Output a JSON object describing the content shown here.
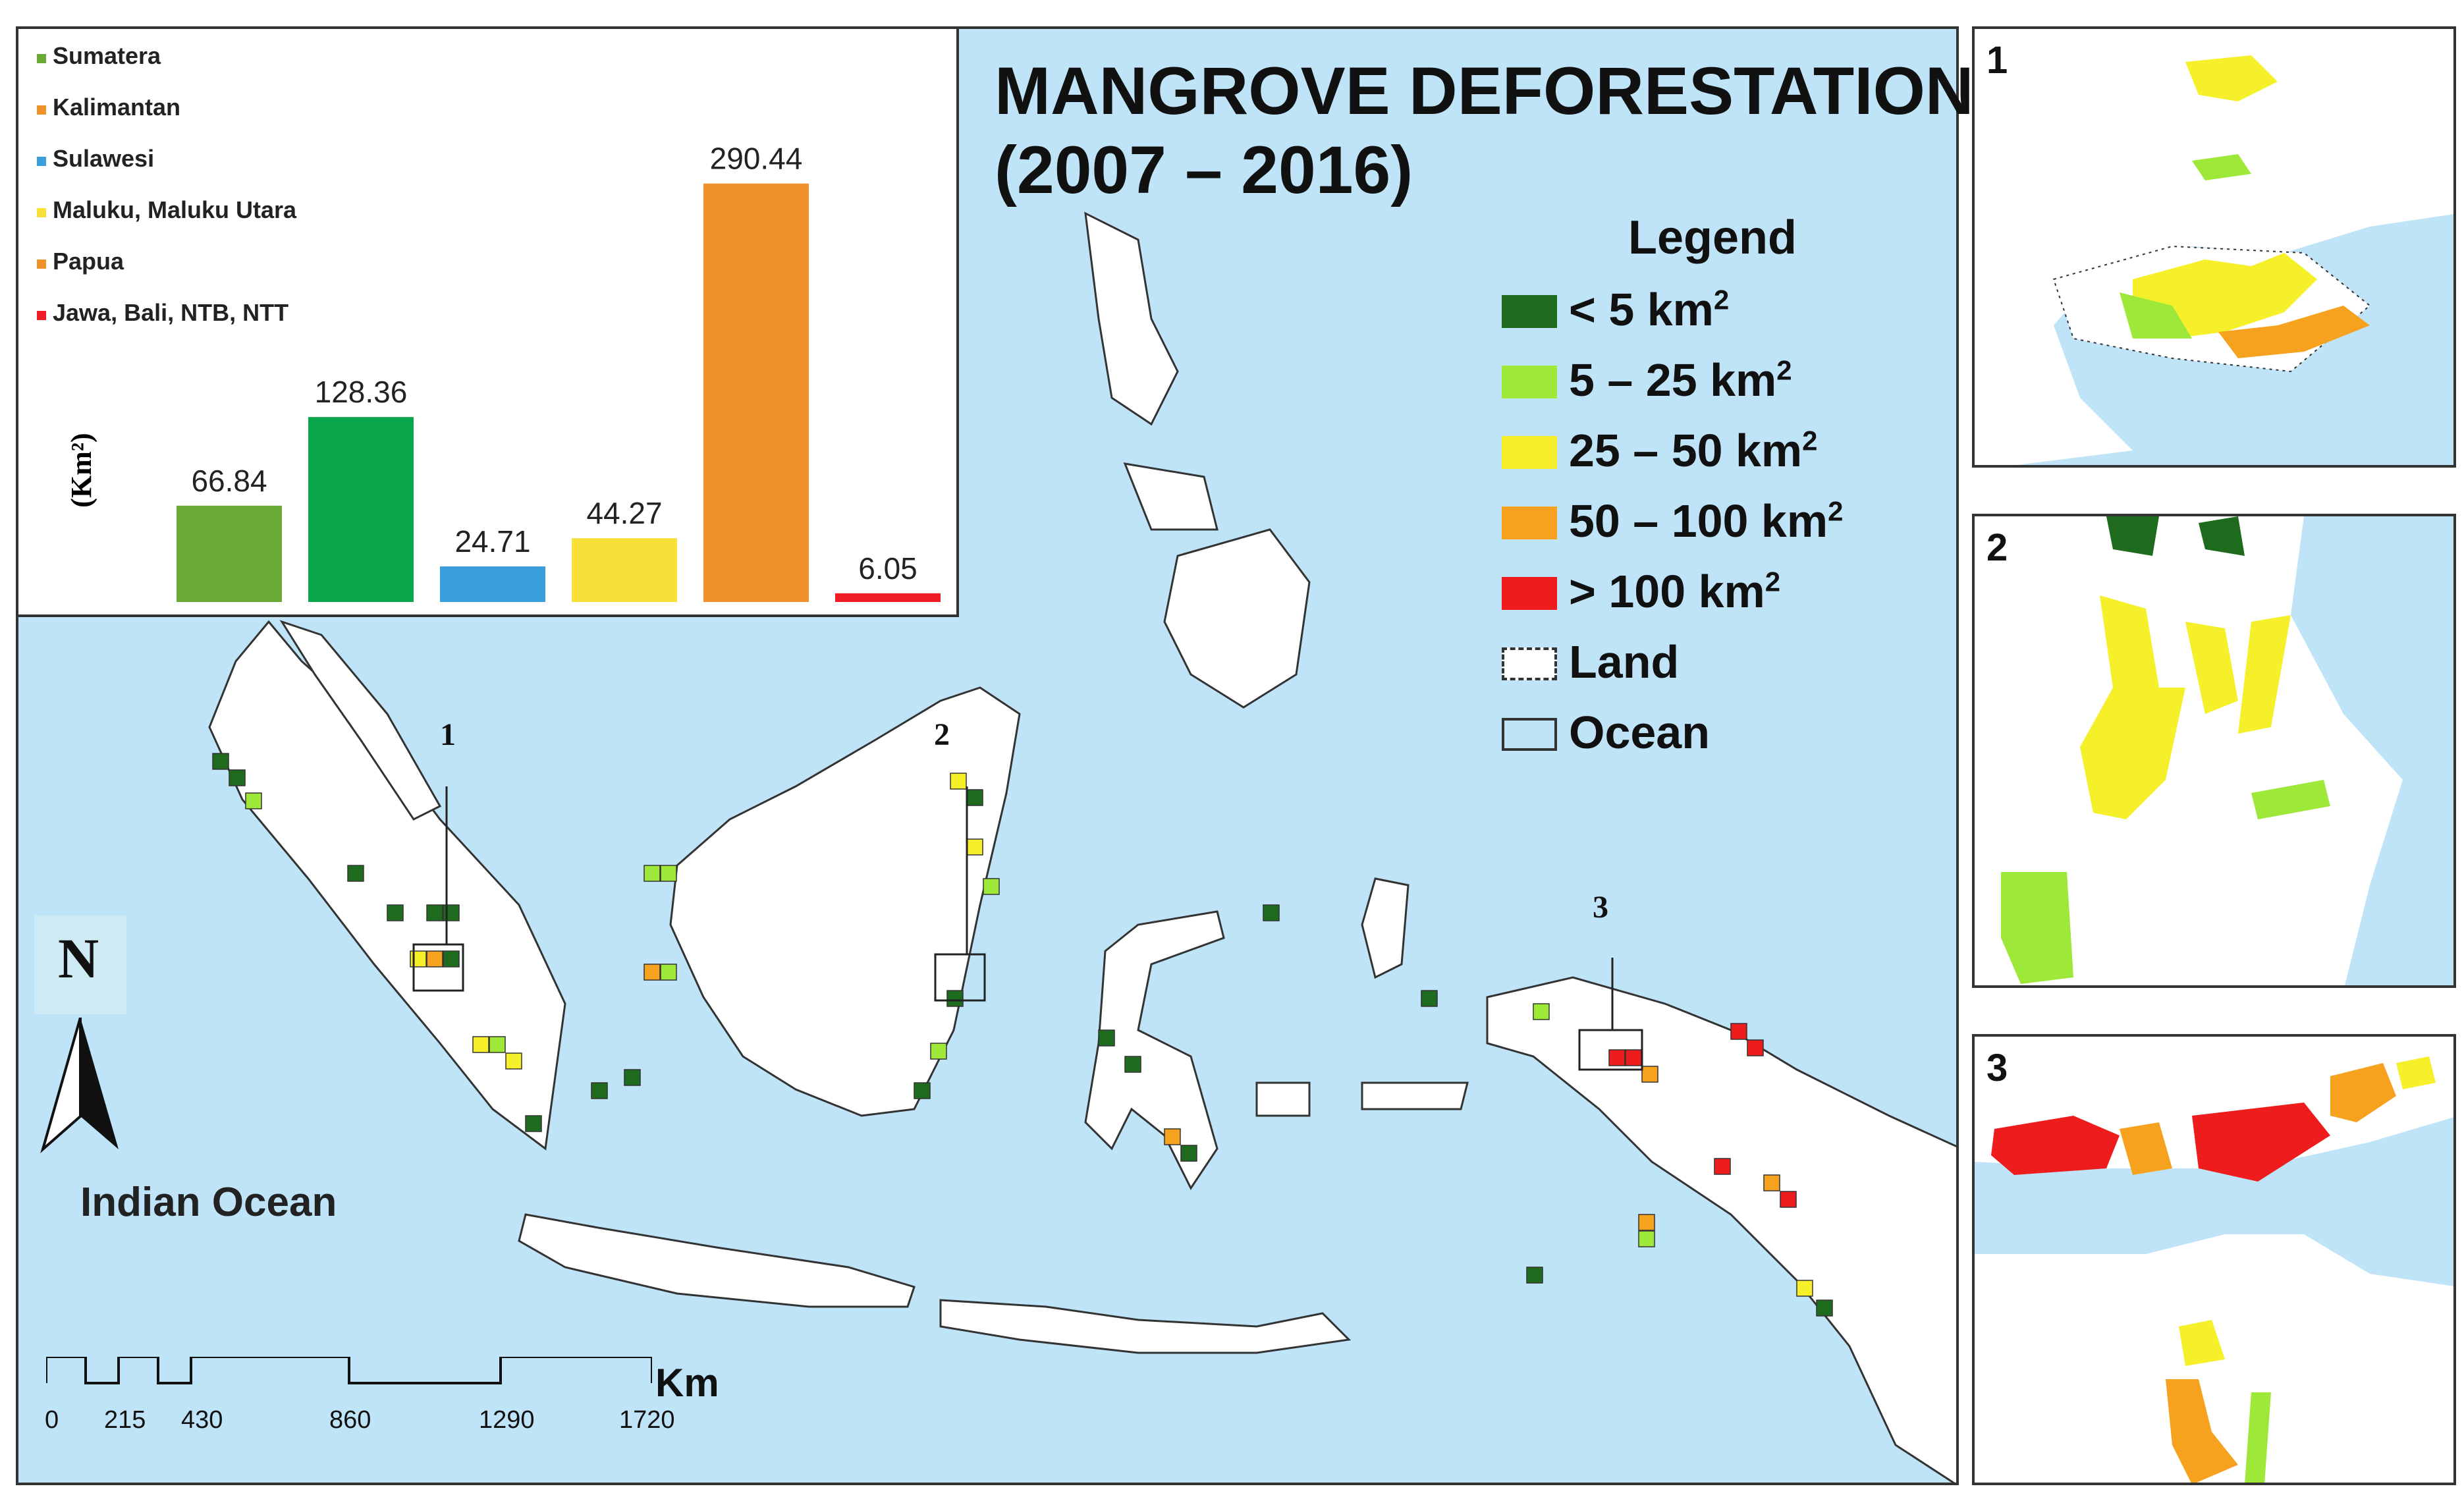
{
  "title": {
    "line1": "MANGROVE DEFORESTATION",
    "line2": "(2007 – 2016)"
  },
  "legend": {
    "title": "Legend",
    "items": [
      {
        "label": "< 5 km",
        "sup": "2",
        "color": "#1e6b1e"
      },
      {
        "label": "5 – 25 km",
        "sup": "2",
        "color": "#9ee83a"
      },
      {
        "label": "25 – 50 km",
        "sup": "2",
        "color": "#f6f02a"
      },
      {
        "label": "50 – 100 km",
        "sup": "2",
        "color": "#f7a21e"
      },
      {
        "label": "> 100 km",
        "sup": "2",
        "color": "#ee1c1c"
      },
      {
        "label": "Land",
        "sup": "",
        "color": "#ffffff"
      },
      {
        "label": "Ocean",
        "sup": "",
        "color": "#bfe3f7"
      }
    ]
  },
  "map_labels": {
    "north": "N",
    "ocean": "Indian Ocean",
    "scale_unit": "Km",
    "scale_ticks": [
      "0",
      "215",
      "430",
      "860",
      "1290",
      "1720"
    ],
    "locations": [
      "1",
      "2",
      "3"
    ]
  },
  "insets": [
    {
      "label": "1"
    },
    {
      "label": "2"
    },
    {
      "label": "3"
    }
  ],
  "chart_data": {
    "type": "bar",
    "categories": [
      "Sumatera",
      "Kalimantan",
      "Sulawesi",
      "Maluku, Maluku Utara",
      "Papua",
      "Jawa, Bali, NTB, NTT"
    ],
    "values": [
      66.84,
      128.36,
      24.71,
      44.27,
      290.44,
      6.05
    ],
    "value_labels": [
      "66.84",
      "128.36",
      "24.71",
      "44.27",
      "290.44",
      "6.05"
    ],
    "colors": [
      "#6aaa34",
      "#0aa64b",
      "#3b9fdc",
      "#f7e03a",
      "#f0922c",
      "#ee1c24"
    ],
    "legend_colors": [
      "#6aaa34",
      "#f0922c",
      "#3b9fdc",
      "#f7e03a",
      "#f0922c",
      "#ee1c24"
    ],
    "ylabel": "(Km²)",
    "ylim": [
      0,
      320
    ],
    "legend_position": "top-left",
    "grid": false
  }
}
